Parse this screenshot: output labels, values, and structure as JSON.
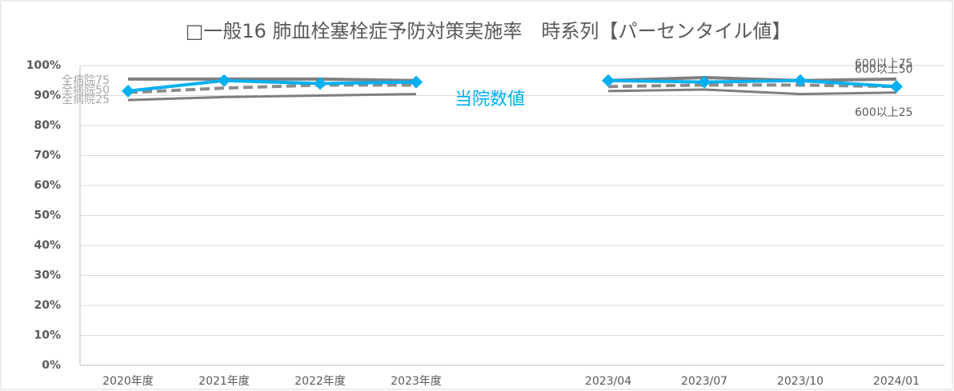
{
  "chart_data": {
    "type": "line",
    "title": "□一般16 肺血栓塞栓症予防対策実施率　時系列【パーセンタイル値】",
    "categories": [
      "2020年度",
      "2021年度",
      "2022年度",
      "2023年度",
      null,
      "2023/04",
      "2023/07",
      "2023/10",
      "2024/01"
    ],
    "series": [
      {
        "name": "当院数値",
        "color": "#00b0f0",
        "values": [
          91.5,
          95,
          94,
          94.5,
          null,
          95,
          94.5,
          95,
          93
        ]
      },
      {
        "name": "全病院75",
        "color": "#7f7f7f",
        "values": [
          95.5,
          95.5,
          95.5,
          95,
          null,
          null,
          null,
          null,
          null
        ]
      },
      {
        "name": "全病院50",
        "color": "#8c8c8c",
        "values": [
          91,
          92.5,
          93.5,
          93.5,
          null,
          null,
          null,
          null,
          null
        ]
      },
      {
        "name": "全病院25",
        "color": "#7f7f7f",
        "values": [
          88.5,
          89.5,
          90,
          90.5,
          null,
          null,
          null,
          null,
          null
        ]
      },
      {
        "name": "600以上75",
        "color": "#7f7f7f",
        "values": [
          null,
          null,
          null,
          null,
          null,
          95,
          96,
          95,
          95.5
        ]
      },
      {
        "name": "600以上50",
        "color": "#8c8c8c",
        "values": [
          null,
          null,
          null,
          null,
          null,
          93,
          93.5,
          93.5,
          93
        ]
      },
      {
        "name": "600以上25",
        "color": "#7f7f7f",
        "values": [
          null,
          null,
          null,
          null,
          null,
          91.5,
          92,
          90.5,
          91
        ]
      }
    ],
    "ylim": [
      0,
      100
    ],
    "yticks": [
      {
        "value": 0,
        "label": "0%"
      },
      {
        "value": 10,
        "label": "10%"
      },
      {
        "value": 20,
        "label": "20%"
      },
      {
        "value": 30,
        "label": "30%"
      },
      {
        "value": 40,
        "label": "40%"
      },
      {
        "value": 50,
        "label": "50%"
      },
      {
        "value": 60,
        "label": "60%"
      },
      {
        "value": 70,
        "label": "70%"
      },
      {
        "value": 80,
        "label": "80%"
      },
      {
        "value": 90,
        "label": "90%"
      },
      {
        "value": 100,
        "label": "100%"
      }
    ],
    "grid": true
  }
}
